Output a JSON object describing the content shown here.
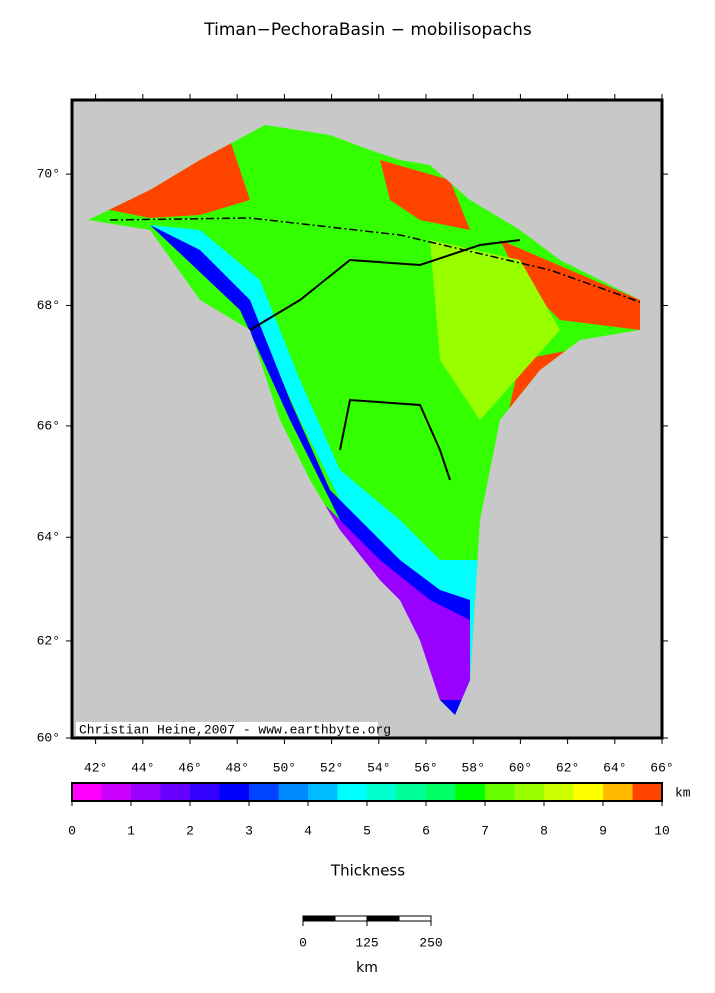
{
  "title": "Timan−PechoraBasin − mobilisopachs",
  "map": {
    "projection": "mercator",
    "xlim": [
      41,
      66
    ],
    "ylim": [
      60,
      71.05
    ],
    "xticks": [
      {
        "value": 42,
        "label": "42°"
      },
      {
        "value": 44,
        "label": "44°"
      },
      {
        "value": 46,
        "label": "46°"
      },
      {
        "value": 48,
        "label": "48°"
      },
      {
        "value": 50,
        "label": "50°"
      },
      {
        "value": 52,
        "label": "52°"
      },
      {
        "value": 54,
        "label": "54°"
      },
      {
        "value": 56,
        "label": "56°"
      },
      {
        "value": 58,
        "label": "58°"
      },
      {
        "value": 60,
        "label": "60°"
      },
      {
        "value": 62,
        "label": "62°"
      },
      {
        "value": 64,
        "label": "64°"
      },
      {
        "value": 66,
        "label": "66°"
      }
    ],
    "yticks": [
      {
        "value": 60,
        "label": "60°"
      },
      {
        "value": 62,
        "label": "62°"
      },
      {
        "value": 64,
        "label": "64°"
      },
      {
        "value": 66,
        "label": "66°"
      },
      {
        "value": 68,
        "label": "68°"
      },
      {
        "value": 70,
        "label": "70°"
      }
    ],
    "credit": "Christian Heine,2007 - www.earthbyte.org"
  },
  "colorbar": {
    "range": [
      0,
      10
    ],
    "ticks": [
      0,
      1,
      2,
      3,
      4,
      5,
      6,
      7,
      8,
      9,
      10
    ],
    "unit": "km",
    "label": "Thickness",
    "colors": [
      "#ff00ff",
      "#cc00ff",
      "#9900ff",
      "#6600ff",
      "#3300ff",
      "#0000ff",
      "#0044ff",
      "#0088ff",
      "#00bbff",
      "#00ffff",
      "#00ffcc",
      "#00ff99",
      "#00ff66",
      "#00ff00",
      "#66ff00",
      "#99ff00",
      "#ccff00",
      "#ffff00",
      "#ffbb00",
      "#ff4400"
    ]
  },
  "scale_bar": {
    "ticks": [
      0,
      125,
      250
    ],
    "unit": "km"
  }
}
